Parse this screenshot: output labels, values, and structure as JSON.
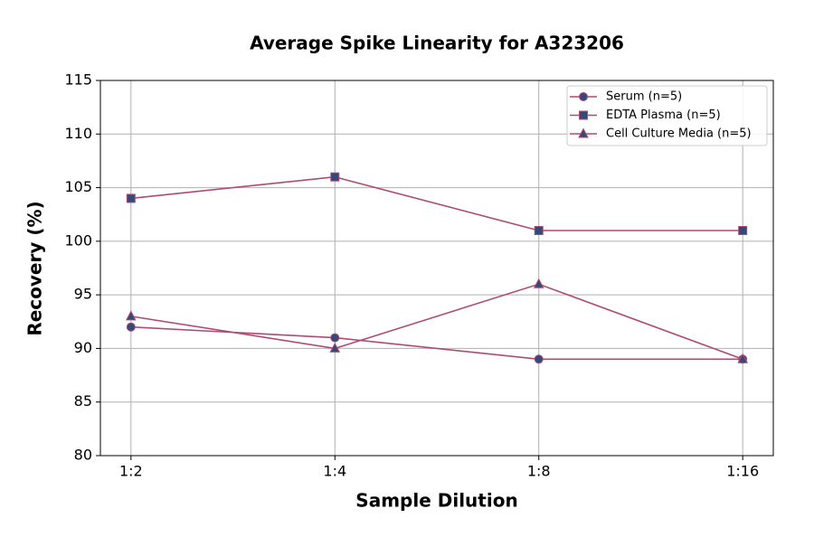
{
  "chart_data": {
    "type": "line",
    "title": "Average Spike Linearity for A323206",
    "x_label": "Sample Dilution",
    "y_label": "Recovery (%)",
    "categories": [
      "1:2",
      "1:4",
      "1:8",
      "1:16"
    ],
    "series": [
      {
        "name": "Serum (n=5)",
        "color": "#b04a72",
        "marker": "circle",
        "values": [
          92,
          91,
          89,
          89
        ]
      },
      {
        "name": "EDTA Plasma (n=5)",
        "color": "#b04a72",
        "marker": "square",
        "values": [
          104,
          106,
          101,
          101
        ]
      },
      {
        "name": "Cell Culture Media (n=5)",
        "color": "#b04a72",
        "marker": "triangle",
        "values": [
          93,
          90,
          96,
          89
        ]
      }
    ],
    "marker_fill": "#34497a",
    "ylim": [
      80,
      115
    ],
    "yticks": [
      80,
      85,
      90,
      95,
      100,
      105,
      110,
      115
    ],
    "grid": true,
    "legend": "upper right"
  }
}
